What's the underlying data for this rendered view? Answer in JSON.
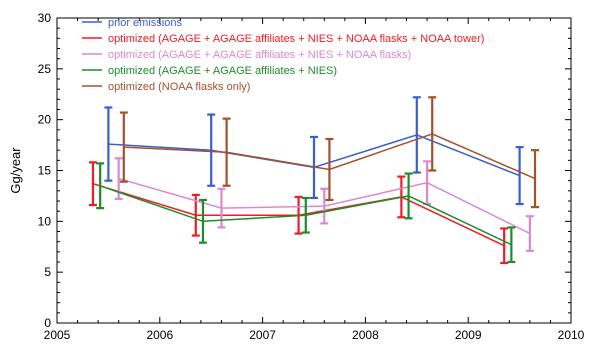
{
  "chart_data": {
    "type": "line",
    "title": "",
    "xlabel": "",
    "ylabel": "Gg/year",
    "xlim": [
      2005,
      2010
    ],
    "ylim": [
      0,
      30
    ],
    "x_ticks": [
      2005,
      2006,
      2007,
      2008,
      2009,
      2010
    ],
    "y_ticks": [
      0,
      5,
      10,
      15,
      20,
      25,
      30
    ],
    "grid": false,
    "legend_placement": "top-left",
    "series": [
      {
        "name": "prior emissions",
        "color": "#3a5fcd",
        "x": [
          2005.5,
          2006.5,
          2007.5,
          2008.5,
          2009.5
        ],
        "y": [
          17.6,
          17.0,
          15.3,
          18.5,
          14.5
        ],
        "err": [
          3.6,
          3.5,
          3.0,
          3.7,
          2.8
        ]
      },
      {
        "name": "optimized (AGAGE + AGAGE affiliates + NIES + NOAA flasks + NOAA tower)",
        "color": "#ee1c25",
        "x": [
          2005.35,
          2006.35,
          2007.35,
          2008.35,
          2009.35
        ],
        "y": [
          13.7,
          10.6,
          10.6,
          12.4,
          7.6
        ],
        "err": [
          2.1,
          2.0,
          1.8,
          2.0,
          1.7
        ]
      },
      {
        "name": "optimized (AGAGE + AGAGE affiliates + NIES + NOAA flasks)",
        "color": "#dd88cc",
        "x": [
          2005.6,
          2006.6,
          2007.6,
          2008.6,
          2009.6
        ],
        "y": [
          14.2,
          11.3,
          11.5,
          13.8,
          8.8
        ],
        "err": [
          2.0,
          1.9,
          1.7,
          2.1,
          1.7
        ]
      },
      {
        "name": "optimized (AGAGE + AGAGE affiliates + NIES)",
        "color": "#1e8c2a",
        "x": [
          2005.42,
          2006.42,
          2007.42,
          2008.42,
          2009.42
        ],
        "y": [
          13.5,
          10.0,
          10.6,
          12.5,
          7.7
        ],
        "err": [
          2.2,
          2.1,
          1.7,
          2.2,
          1.7
        ]
      },
      {
        "name": "optimized (NOAA flasks only)",
        "color": "#a0522d",
        "x": [
          2005.65,
          2006.65,
          2007.65,
          2008.65,
          2009.65
        ],
        "y": [
          17.3,
          16.8,
          15.1,
          18.6,
          14.2
        ],
        "err": [
          3.4,
          3.3,
          3.0,
          3.6,
          2.8
        ]
      }
    ]
  }
}
